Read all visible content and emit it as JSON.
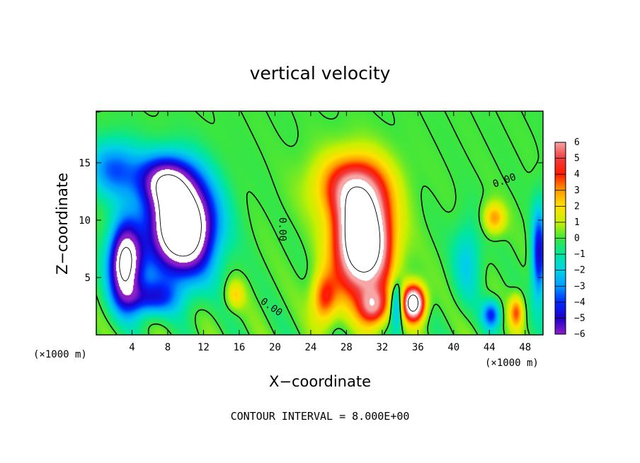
{
  "chart_data": {
    "type": "heatmap",
    "title": "vertical velocity",
    "xlabel": "X−coordinate",
    "ylabel": "Z−coordinate",
    "x_unit": "(×1000 m)",
    "y_unit": "(×1000 m)",
    "xlim": [
      0,
      50
    ],
    "ylim": [
      0,
      19.5
    ],
    "x_ticks": [
      4,
      8,
      12,
      16,
      20,
      24,
      28,
      32,
      36,
      40,
      44,
      48
    ],
    "x_tick_labels": [
      "4",
      "8",
      "12",
      "16",
      "20",
      "24",
      "28",
      "32",
      "36",
      "40",
      "44",
      "48"
    ],
    "y_ticks": [
      5,
      10,
      15
    ],
    "y_tick_labels": [
      "5",
      "10",
      "15"
    ],
    "colorbar": {
      "min": -6,
      "max": 6,
      "labels": [
        "6",
        "5",
        "4",
        "3",
        "2",
        "1",
        "0",
        "−1",
        "−2",
        "−3",
        "−4",
        "−5",
        "−6"
      ],
      "values": [
        6,
        5,
        4,
        3,
        2,
        1,
        0,
        -1,
        -2,
        -3,
        -4,
        -5,
        -6
      ]
    },
    "contour_labels": [
      {
        "text": "0.00",
        "x": 45.8,
        "z": 13.2,
        "rotate": -20
      },
      {
        "text": "0.00",
        "x": 20.5,
        "z": 9.2,
        "rotate": 90
      },
      {
        "text": "0.00",
        "x": 19.4,
        "z": 2.2,
        "rotate": 35
      }
    ],
    "footer": "CONTOUR INTERVAL = 8.000E+00",
    "features": [
      {
        "sign": "neg",
        "x": 9.5,
        "z": 9.5,
        "sx": 3.6,
        "sz": 4.2,
        "amp": 12
      },
      {
        "sign": "neg",
        "x": 3.2,
        "z": 6.2,
        "sx": 1.8,
        "sz": 3.5,
        "amp": 9
      },
      {
        "sign": "neg",
        "x": 7.5,
        "z": 13.5,
        "sx": 3.0,
        "sz": 2.2,
        "amp": 5
      },
      {
        "sign": "neg",
        "x": 2.0,
        "z": 14.5,
        "sx": 3.0,
        "sz": 2.5,
        "amp": 3.5
      },
      {
        "sign": "neg",
        "x": 6.0,
        "z": 3.2,
        "sx": 2.8,
        "sz": 1.5,
        "amp": 4
      },
      {
        "sign": "pos",
        "x": 29.8,
        "z": 8.2,
        "sx": 3.0,
        "sz": 4.4,
        "amp": 12
      },
      {
        "sign": "pos",
        "x": 28.5,
        "z": 13.0,
        "sx": 4.0,
        "sz": 2.8,
        "amp": 4.5
      },
      {
        "sign": "pos",
        "x": 35.5,
        "z": 2.8,
        "sx": 1.2,
        "sz": 1.5,
        "amp": 10
      },
      {
        "sign": "pos",
        "x": 31.0,
        "z": 2.5,
        "sx": 1.6,
        "sz": 1.6,
        "amp": 5
      },
      {
        "sign": "pos",
        "x": 25.5,
        "z": 3.2,
        "sx": 1.4,
        "sz": 2.2,
        "amp": 4
      },
      {
        "sign": "pos",
        "x": 44.5,
        "z": 10.2,
        "sx": 1.2,
        "sz": 1.3,
        "amp": 3
      },
      {
        "sign": "pos",
        "x": 47.0,
        "z": 2.0,
        "sx": 0.8,
        "sz": 1.4,
        "amp": 3.5
      },
      {
        "sign": "pos",
        "x": 15.5,
        "z": 3.5,
        "sx": 1.0,
        "sz": 1.2,
        "amp": 2
      },
      {
        "sign": "neg",
        "x": 44.2,
        "z": 1.8,
        "sx": 1.0,
        "sz": 1.2,
        "amp": 4
      },
      {
        "sign": "neg",
        "x": 49.5,
        "z": 7.0,
        "sx": 0.8,
        "sz": 4.0,
        "amp": 5
      },
      {
        "sign": "neg",
        "x": 41.5,
        "z": 6.5,
        "sx": 1.6,
        "sz": 3.5,
        "amp": 2
      },
      {
        "sign": "neg",
        "x": 33.6,
        "z": 2.6,
        "sx": 0.7,
        "sz": 2.0,
        "amp": 4
      }
    ]
  }
}
